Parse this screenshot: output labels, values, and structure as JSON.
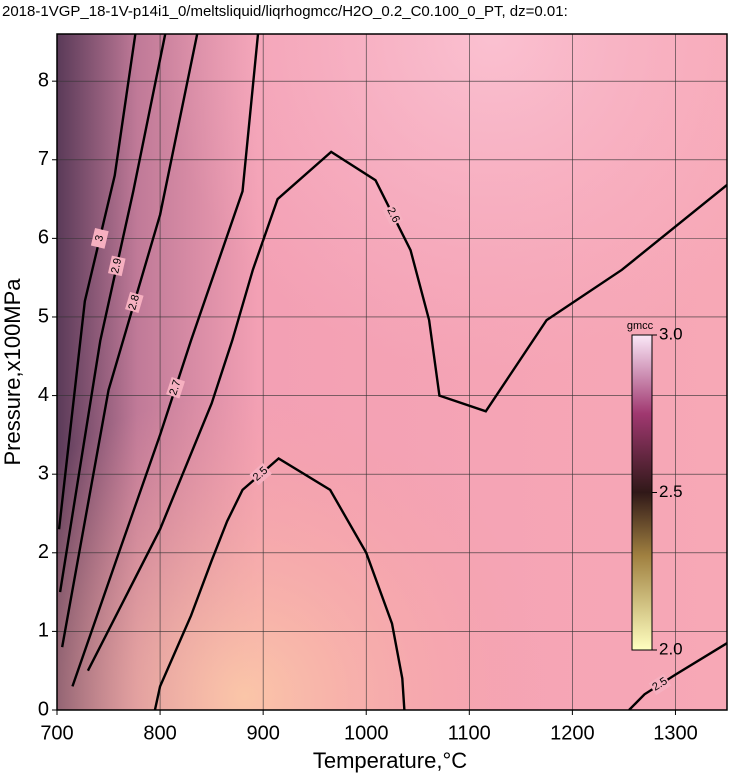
{
  "chart_data": {
    "type": "contour",
    "title": "2018-1VGP_18-1V-p14i1_0/meltsliquid/liqrhogmcc/H2O_0.2_C0.100_0_PT, dz=0.01:",
    "xlabel": "Temperature,°C",
    "ylabel": "Pressure,x100MPa",
    "xlim": [
      700,
      1350
    ],
    "ylim": [
      0,
      8.6
    ],
    "xticks": [
      700,
      800,
      900,
      1000,
      1100,
      1200,
      1300
    ],
    "yticks": [
      0,
      1,
      2,
      3,
      4,
      5,
      6,
      7,
      8
    ],
    "grid": true,
    "colorbar": {
      "label": "gmcc",
      "lim": [
        2,
        3
      ],
      "ticks": [
        {
          "value": 2,
          "label": "2.0"
        },
        {
          "value": 2.5,
          "label": "2.5"
        },
        {
          "value": 3,
          "label": "3.0"
        }
      ]
    },
    "contours": [
      {
        "level": 2.5,
        "x": [
          795,
          800,
          830,
          850,
          865,
          880,
          915,
          965,
          1000,
          1025,
          1035,
          1037
        ],
        "y": [
          0,
          0.3,
          1.2,
          1.9,
          2.4,
          2.8,
          3.2,
          2.8,
          2.0,
          1.1,
          0.4,
          0
        ]
      },
      {
        "level": 2.5,
        "x": [
          1255,
          1270,
          1300,
          1350
        ],
        "y": [
          0,
          0.2,
          0.45,
          0.85
        ]
      },
      {
        "level": 2.6,
        "x": [
          730,
          800,
          850,
          870,
          890,
          914,
          966,
          1009,
          1043,
          1061,
          1071,
          1116,
          1175,
          1248,
          1350
        ],
        "y": [
          0.5,
          2.3,
          3.9,
          4.7,
          5.6,
          6.5,
          7.1,
          6.74,
          5.85,
          4.96,
          4.0,
          3.8,
          4.96,
          5.6,
          6.68
        ]
      },
      {
        "level": 2.7,
        "x": [
          715,
          760,
          800,
          830,
          880,
          895
        ],
        "y": [
          0.3,
          2.0,
          3.5,
          4.7,
          6.6,
          8.6
        ]
      },
      {
        "level": 2.8,
        "x": [
          705,
          750,
          800,
          836
        ],
        "y": [
          0.8,
          4.07,
          6.3,
          8.6
        ]
      },
      {
        "level": 2.9,
        "x": [
          703,
          742,
          774,
          805
        ],
        "y": [
          1.5,
          4.7,
          6.6,
          8.6
        ]
      },
      {
        "level": 3,
        "x": [
          702,
          727,
          756,
          776
        ],
        "y": [
          2.3,
          5.2,
          6.8,
          8.6
        ]
      }
    ]
  }
}
